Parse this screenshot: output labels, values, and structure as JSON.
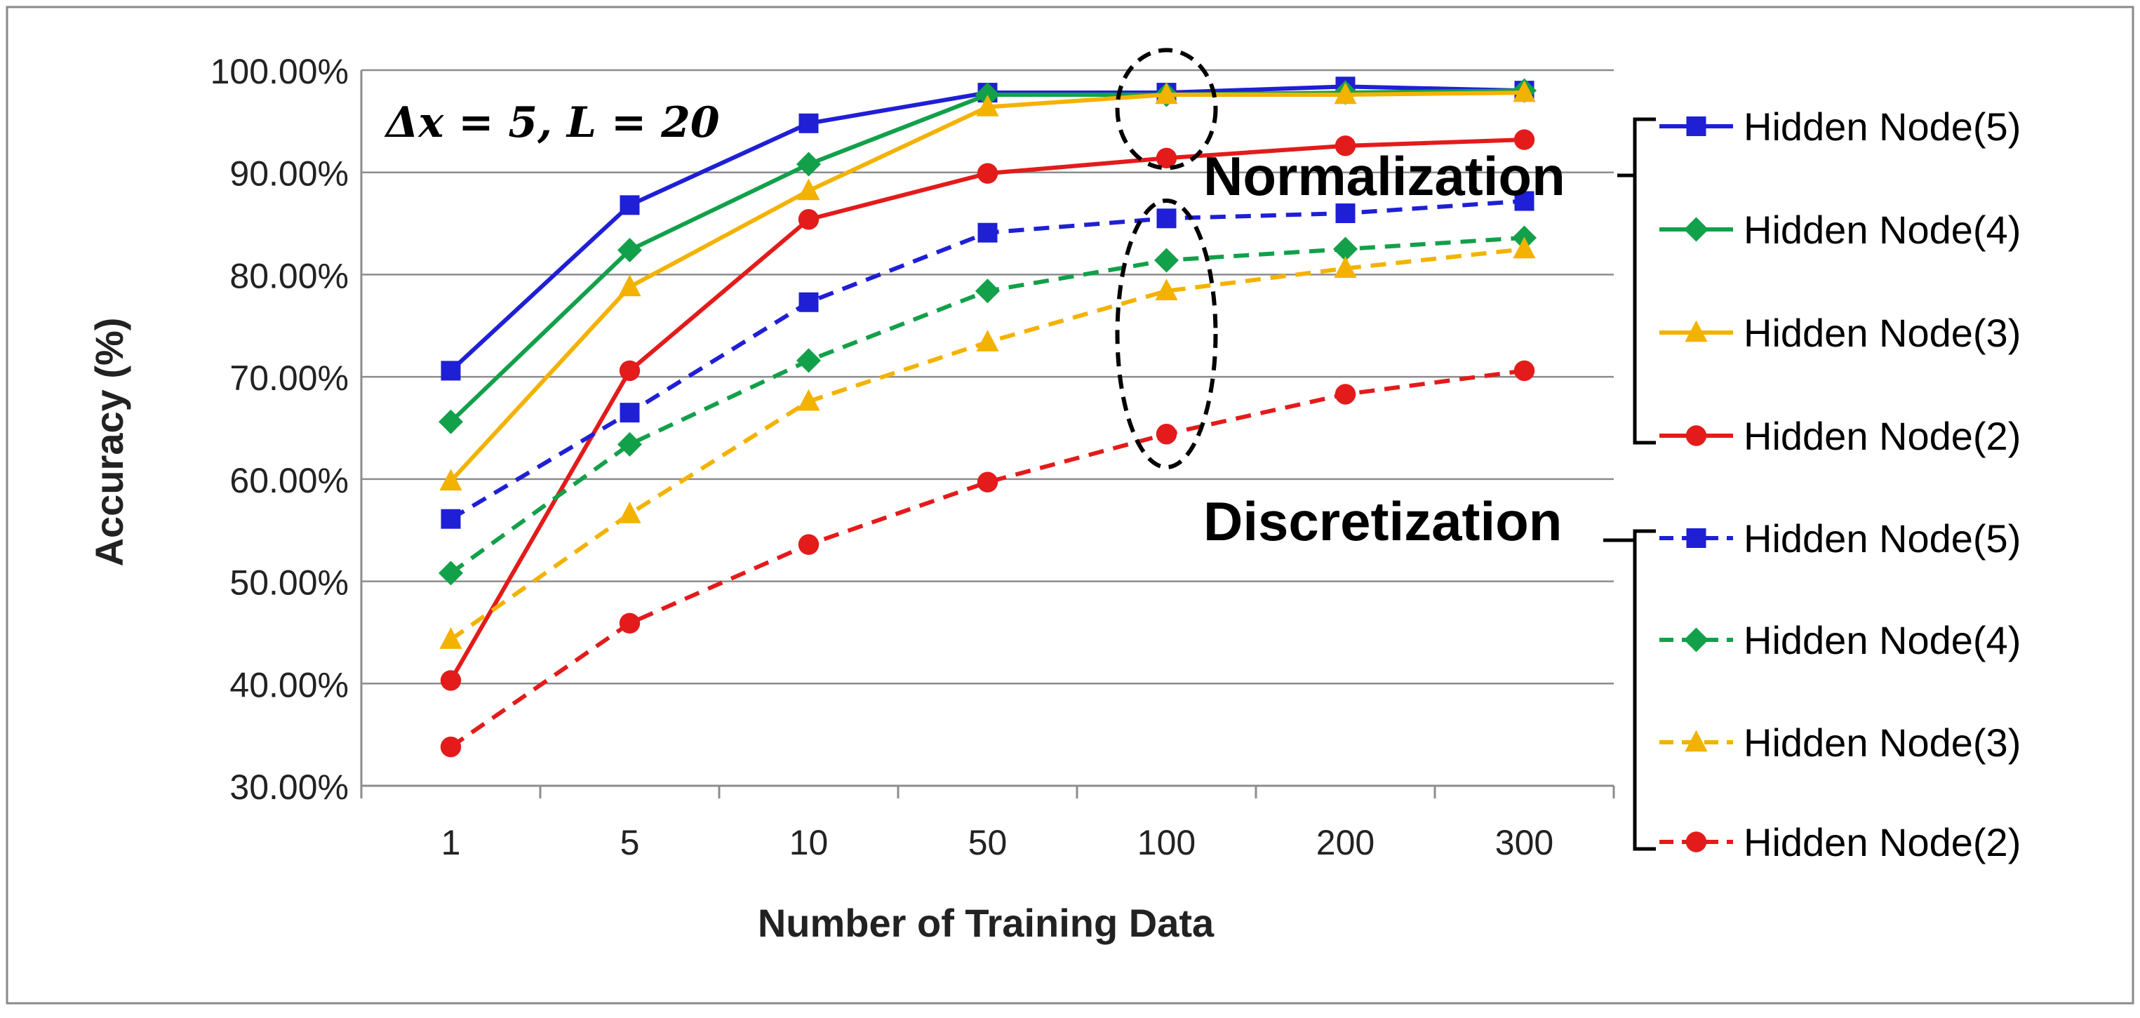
{
  "chart_data": {
    "type": "line",
    "title": "",
    "annotation": "Δx = 5, L = 20",
    "xlabel": "Number of Training Data",
    "ylabel": "Accuracy (%)",
    "categories": [
      "1",
      "5",
      "10",
      "50",
      "100",
      "200",
      "300"
    ],
    "ylim": [
      30,
      100
    ],
    "yticks": [
      30,
      40,
      50,
      60,
      70,
      80,
      90,
      100
    ],
    "ytick_labels": [
      "30.00%",
      "40.00%",
      "50.00%",
      "60.00%",
      "70.00%",
      "80.00%",
      "90.00%",
      "100.00%"
    ],
    "grid": "horizontal",
    "legend_position": "right",
    "group_labels": {
      "normalization": "Normalization",
      "discretization": "Discretization"
    },
    "series": [
      {
        "name": "Hidden Node(5)",
        "group": "Normalization",
        "color": "#1f1fd6",
        "marker": "square",
        "dashed": false,
        "values": [
          70.6,
          86.8,
          94.8,
          97.8,
          97.8,
          98.4,
          98.0
        ]
      },
      {
        "name": "Hidden Node(4)",
        "group": "Normalization",
        "color": "#12a04a",
        "marker": "diamond",
        "dashed": false,
        "values": [
          65.6,
          82.4,
          90.8,
          97.6,
          97.6,
          97.8,
          98.0
        ]
      },
      {
        "name": "Hidden Node(3)",
        "group": "Normalization",
        "color": "#f3b200",
        "marker": "triangle",
        "dashed": false,
        "values": [
          59.8,
          78.8,
          88.2,
          96.4,
          97.6,
          97.6,
          97.8
        ]
      },
      {
        "name": "Hidden Node(2)",
        "group": "Normalization",
        "color": "#e31b1b",
        "marker": "circle",
        "dashed": false,
        "values": [
          40.3,
          70.6,
          85.4,
          89.9,
          91.4,
          92.6,
          93.2
        ]
      },
      {
        "name": "Hidden Node(5)",
        "group": "Discretization",
        "color": "#1f1fd6",
        "marker": "square",
        "dashed": true,
        "values": [
          56.1,
          66.5,
          77.3,
          84.1,
          85.5,
          86.0,
          87.2
        ]
      },
      {
        "name": "Hidden Node(4)",
        "group": "Discretization",
        "color": "#12a04a",
        "marker": "diamond",
        "dashed": true,
        "values": [
          50.8,
          63.4,
          71.6,
          78.4,
          81.4,
          82.5,
          83.6
        ]
      },
      {
        "name": "Hidden Node(3)",
        "group": "Discretization",
        "color": "#f3b200",
        "marker": "triangle",
        "dashed": true,
        "values": [
          44.3,
          56.6,
          67.6,
          73.4,
          78.4,
          80.6,
          82.5
        ]
      },
      {
        "name": "Hidden Node(2)",
        "group": "Discretization",
        "color": "#e31b1b",
        "marker": "circle",
        "dashed": true,
        "values": [
          33.8,
          45.9,
          53.6,
          59.7,
          64.4,
          68.3,
          70.6
        ]
      }
    ],
    "highlight_category": "100"
  }
}
